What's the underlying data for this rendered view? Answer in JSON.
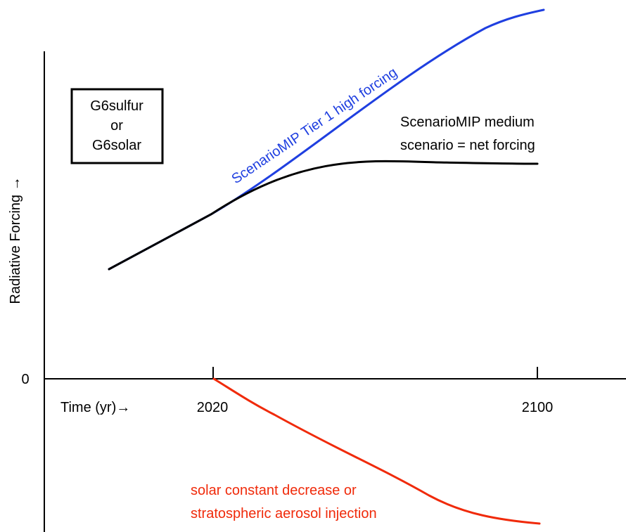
{
  "box": {
    "lines": [
      "G6sulfur",
      "or",
      "G6solar"
    ]
  },
  "axes": {
    "ylabel": "Radiative Forcing →",
    "xlabel": "Time (yr)→",
    "zero_label": "0",
    "ticks": [
      "2020",
      "2100"
    ]
  },
  "labels": {
    "high": "ScenarioMIP Tier 1 high forcing",
    "medium_line1": "ScenarioMIP medium",
    "medium_line2": "scenario = net forcing",
    "geo_line1": "solar constant decrease or",
    "geo_line2": "stratospheric aerosol injection"
  },
  "colors": {
    "high": "#1f3fe0",
    "medium": "#000000",
    "geo": "#f02a0a",
    "axis": "#000000"
  }
}
